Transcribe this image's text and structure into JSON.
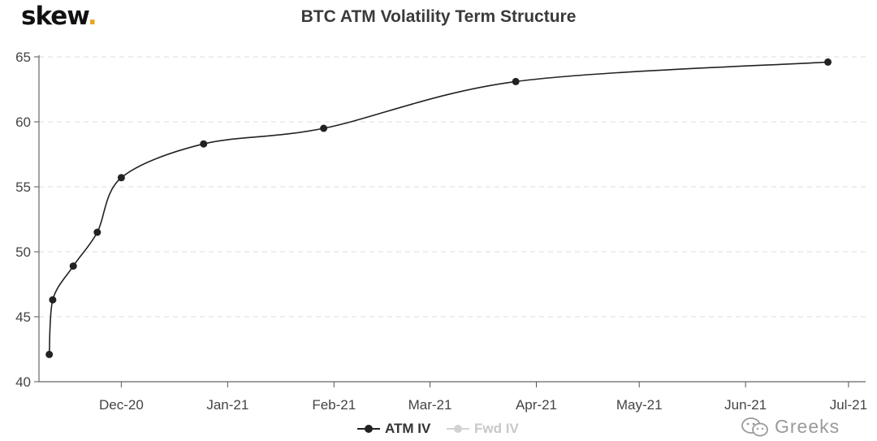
{
  "brand": {
    "name": "skew",
    "dot": ".",
    "dot_color": "#e5a823"
  },
  "watermark": {
    "icon": "wechat-icon",
    "text": "Greeks"
  },
  "chart_data": {
    "type": "line",
    "title": "BTC ATM Volatility Term Structure",
    "xlabel": "",
    "ylabel": "",
    "ylim": [
      40,
      65
    ],
    "yticks": [
      40,
      45,
      50,
      55,
      60,
      65
    ],
    "xlim": [
      "2020-11-07",
      "2021-07-06"
    ],
    "xticks": [
      {
        "date": "2020-12-01",
        "label": "Dec-20"
      },
      {
        "date": "2021-01-01",
        "label": "Jan-21"
      },
      {
        "date": "2021-02-01",
        "label": "Feb-21"
      },
      {
        "date": "2021-03-01",
        "label": "Mar-21"
      },
      {
        "date": "2021-04-01",
        "label": "Apr-21"
      },
      {
        "date": "2021-05-01",
        "label": "May-21"
      },
      {
        "date": "2021-06-01",
        "label": "Jun-21"
      },
      {
        "date": "2021-07-01",
        "label": "Jul-21"
      }
    ],
    "grid": "horizontal dashed",
    "legend": "bottom-center",
    "series": [
      {
        "name": "ATM IV",
        "color": "#222222",
        "points": [
          {
            "x": "2020-11-10",
            "y": 42.1
          },
          {
            "x": "2020-11-11",
            "y": 46.3
          },
          {
            "x": "2020-11-17",
            "y": 48.9
          },
          {
            "x": "2020-11-24",
            "y": 51.5
          },
          {
            "x": "2020-11-31",
            "y": 55.7
          },
          {
            "x": "2020-12-25",
            "y": 58.3
          },
          {
            "x": "2021-01-29",
            "y": 59.5
          },
          {
            "x": "2021-03-26",
            "y": 63.1
          },
          {
            "x": "2021-06-25",
            "y": 64.6
          }
        ]
      },
      {
        "name": "Fwd IV",
        "color": "#d2d2d2",
        "points": []
      }
    ]
  }
}
